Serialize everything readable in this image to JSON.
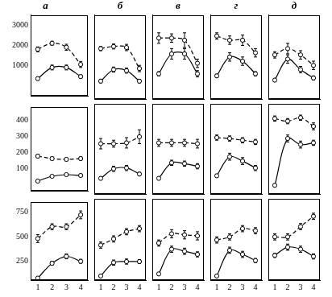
{
  "chart_data": [
    {
      "type": "line",
      "title": "а",
      "x": [
        1,
        2,
        3,
        4
      ],
      "xlim": [
        0.5,
        4.5
      ],
      "xticks": [
        1,
        2,
        3,
        4
      ],
      "ylim": [
        -500,
        3500
      ],
      "yticks": [
        1000,
        2000,
        3000
      ],
      "tick_labels": "y",
      "series": [
        {
          "color": "#000000",
          "line_style": "dashed",
          "marker": "circle",
          "values": [
            1800,
            2100,
            1900,
            1050
          ],
          "errors": [
            120,
            100,
            150,
            150
          ]
        },
        {
          "color": "#000000",
          "line_style": "solid",
          "marker": "circle",
          "values": [
            350,
            900,
            900,
            450
          ],
          "errors": [
            80,
            120,
            120,
            80
          ]
        }
      ]
    },
    {
      "type": "line",
      "title": "б",
      "x": [
        1,
        2,
        3,
        4
      ],
      "xlim": [
        0.5,
        4.5
      ],
      "xticks": [
        1,
        2,
        3,
        4
      ],
      "ylim": [
        -500,
        3500
      ],
      "yticks": [
        1000,
        2000,
        3000
      ],
      "tick_labels": false,
      "series": [
        {
          "color": "#000000",
          "line_style": "dashed",
          "marker": "circle",
          "values": [
            1900,
            2000,
            1950,
            950
          ],
          "errors": [
            100,
            120,
            150,
            150
          ]
        },
        {
          "color": "#000000",
          "line_style": "solid",
          "marker": "circle",
          "values": [
            350,
            900,
            850,
            350
          ],
          "errors": [
            80,
            120,
            120,
            80
          ]
        }
      ]
    },
    {
      "type": "line",
      "title": "в",
      "x": [
        1,
        2,
        3,
        4
      ],
      "xlim": [
        0.5,
        4.5
      ],
      "xticks": [
        1,
        2,
        3,
        4
      ],
      "ylim": [
        -500,
        3500
      ],
      "yticks": [
        1000,
        2000,
        3000
      ],
      "tick_labels": false,
      "series": [
        {
          "color": "#000000",
          "line_style": "dashed",
          "marker": "circle",
          "values": [
            2400,
            2400,
            2300,
            1200
          ],
          "errors": [
            250,
            200,
            350,
            200
          ]
        },
        {
          "color": "#000000",
          "line_style": "solid",
          "marker": "circle",
          "values": [
            700,
            1650,
            1650,
            700
          ],
          "errors": [
            100,
            250,
            250,
            150
          ]
        }
      ]
    },
    {
      "type": "line",
      "title": "г",
      "x": [
        1,
        2,
        3,
        4
      ],
      "xlim": [
        0.5,
        4.5
      ],
      "xticks": [
        1,
        2,
        3,
        4
      ],
      "ylim": [
        -500,
        3500
      ],
      "yticks": [
        1000,
        2000,
        3000
      ],
      "tick_labels": false,
      "series": [
        {
          "color": "#000000",
          "line_style": "dashed",
          "marker": "circle",
          "values": [
            2500,
            2300,
            2300,
            1700
          ],
          "errors": [
            150,
            200,
            250,
            200
          ]
        },
        {
          "color": "#000000",
          "line_style": "solid",
          "marker": "circle",
          "values": [
            600,
            1500,
            1300,
            700
          ],
          "errors": [
            80,
            200,
            200,
            100
          ]
        }
      ]
    },
    {
      "type": "line",
      "title": "д",
      "x": [
        1,
        2,
        3,
        4
      ],
      "xlim": [
        0.5,
        4.5
      ],
      "xticks": [
        1,
        2,
        3,
        4
      ],
      "ylim": [
        -500,
        3500
      ],
      "yticks": [
        1000,
        2000,
        3000
      ],
      "tick_labels": false,
      "series": [
        {
          "color": "#000000",
          "line_style": "dashed",
          "marker": "circle",
          "values": [
            1600,
            1900,
            1600,
            1100
          ],
          "errors": [
            150,
            250,
            200,
            200
          ]
        },
        {
          "color": "#000000",
          "line_style": "solid",
          "marker": "circle",
          "values": [
            400,
            1400,
            900,
            500
          ],
          "errors": [
            80,
            200,
            150,
            100
          ]
        }
      ]
    },
    {
      "type": "line",
      "x": [
        1,
        2,
        3,
        4
      ],
      "xlim": [
        0.5,
        4.5
      ],
      "xticks": [
        1,
        2,
        3,
        4
      ],
      "ylim": [
        -40,
        480
      ],
      "yticks": [
        100,
        200,
        300,
        400
      ],
      "tick_labels": "y",
      "series": [
        {
          "color": "#000000",
          "line_style": "dashed",
          "marker": "circle",
          "values": [
            175,
            160,
            155,
            160
          ],
          "errors": [
            10,
            10,
            10,
            10
          ]
        },
        {
          "color": "#000000",
          "line_style": "solid",
          "marker": "circle",
          "values": [
            20,
            50,
            60,
            55
          ],
          "errors": [
            5,
            8,
            8,
            8
          ]
        }
      ]
    },
    {
      "type": "line",
      "x": [
        1,
        2,
        3,
        4
      ],
      "xlim": [
        0.5,
        4.5
      ],
      "xticks": [
        1,
        2,
        3,
        4
      ],
      "ylim": [
        -40,
        480
      ],
      "yticks": [
        100,
        200,
        300,
        400
      ],
      "tick_labels": false,
      "series": [
        {
          "color": "#000000",
          "line_style": "dashed",
          "marker": "circle",
          "values": [
            250,
            250,
            255,
            290
          ],
          "errors": [
            30,
            20,
            30,
            40
          ]
        },
        {
          "color": "#000000",
          "line_style": "solid",
          "marker": "circle",
          "values": [
            50,
            105,
            110,
            75
          ],
          "errors": [
            8,
            15,
            15,
            10
          ]
        }
      ]
    },
    {
      "type": "line",
      "x": [
        1,
        2,
        3,
        4
      ],
      "xlim": [
        0.5,
        4.5
      ],
      "xticks": [
        1,
        2,
        3,
        4
      ],
      "ylim": [
        -40,
        480
      ],
      "yticks": [
        100,
        200,
        300,
        400
      ],
      "tick_labels": false,
      "series": [
        {
          "color": "#000000",
          "line_style": "dashed",
          "marker": "circle",
          "values": [
            255,
            255,
            255,
            250
          ],
          "errors": [
            20,
            20,
            20,
            25
          ]
        },
        {
          "color": "#000000",
          "line_style": "solid",
          "marker": "circle",
          "values": [
            50,
            140,
            135,
            120
          ],
          "errors": [
            8,
            15,
            15,
            15
          ]
        }
      ]
    },
    {
      "type": "line",
      "x": [
        1,
        2,
        3,
        4
      ],
      "xlim": [
        0.5,
        4.5
      ],
      "xticks": [
        1,
        2,
        3,
        4
      ],
      "ylim": [
        -40,
        480
      ],
      "yticks": [
        100,
        200,
        300,
        400
      ],
      "tick_labels": false,
      "series": [
        {
          "color": "#000000",
          "line_style": "dashed",
          "marker": "circle",
          "values": [
            285,
            280,
            270,
            260
          ],
          "errors": [
            15,
            15,
            15,
            15
          ]
        },
        {
          "color": "#000000",
          "line_style": "solid",
          "marker": "circle",
          "values": [
            65,
            175,
            150,
            110
          ],
          "errors": [
            8,
            20,
            20,
            15
          ]
        }
      ]
    },
    {
      "type": "line",
      "x": [
        1,
        2,
        3,
        4
      ],
      "xlim": [
        0.5,
        4.5
      ],
      "xticks": [
        1,
        2,
        3,
        4
      ],
      "ylim": [
        -40,
        480
      ],
      "yticks": [
        100,
        200,
        300,
        400
      ],
      "tick_labels": false,
      "series": [
        {
          "color": "#000000",
          "line_style": "dashed",
          "marker": "circle",
          "values": [
            395,
            380,
            400,
            350
          ],
          "errors": [
            15,
            15,
            15,
            20
          ]
        },
        {
          "color": "#000000",
          "line_style": "solid",
          "marker": "circle",
          "values": [
            10,
            280,
            245,
            255
          ],
          "errors": [
            5,
            20,
            20,
            15
          ]
        }
      ]
    },
    {
      "type": "line",
      "x": [
        1,
        2,
        3,
        4
      ],
      "xlim": [
        0.5,
        4.5
      ],
      "xticks": [
        1,
        2,
        3,
        4
      ],
      "ylim": [
        60,
        850
      ],
      "yticks": [
        250,
        500,
        750
      ],
      "tick_labels": true,
      "series": [
        {
          "color": "#000000",
          "line_style": "dashed",
          "marker": "circle",
          "values": [
            480,
            600,
            600,
            720
          ],
          "errors": [
            40,
            30,
            30,
            40
          ]
        },
        {
          "color": "#000000",
          "line_style": "solid",
          "marker": "circle",
          "values": [
            80,
            230,
            300,
            250
          ],
          "errors": [
            10,
            20,
            25,
            20
          ]
        }
      ]
    },
    {
      "type": "line",
      "x": [
        1,
        2,
        3,
        4
      ],
      "xlim": [
        0.5,
        4.5
      ],
      "xticks": [
        1,
        2,
        3,
        4
      ],
      "ylim": [
        60,
        850
      ],
      "yticks": [
        250,
        500,
        750
      ],
      "tick_labels": "x",
      "series": [
        {
          "color": "#000000",
          "line_style": "dashed",
          "marker": "circle",
          "values": [
            400,
            460,
            530,
            560
          ],
          "errors": [
            30,
            30,
            30,
            30
          ]
        },
        {
          "color": "#000000",
          "line_style": "solid",
          "marker": "circle",
          "values": [
            100,
            230,
            240,
            240
          ],
          "errors": [
            10,
            25,
            25,
            20
          ]
        }
      ]
    },
    {
      "type": "line",
      "x": [
        1,
        2,
        3,
        4
      ],
      "xlim": [
        0.5,
        4.5
      ],
      "xticks": [
        1,
        2,
        3,
        4
      ],
      "ylim": [
        60,
        850
      ],
      "yticks": [
        250,
        500,
        750
      ],
      "tick_labels": "x",
      "series": [
        {
          "color": "#000000",
          "line_style": "dashed",
          "marker": "circle",
          "values": [
            420,
            510,
            500,
            490
          ],
          "errors": [
            30,
            40,
            40,
            40
          ]
        },
        {
          "color": "#000000",
          "line_style": "solid",
          "marker": "circle",
          "values": [
            120,
            360,
            340,
            310
          ],
          "errors": [
            10,
            30,
            30,
            25
          ]
        }
      ]
    },
    {
      "type": "line",
      "x": [
        1,
        2,
        3,
        4
      ],
      "xlim": [
        0.5,
        4.5
      ],
      "xticks": [
        1,
        2,
        3,
        4
      ],
      "ylim": [
        60,
        850
      ],
      "yticks": [
        250,
        500,
        750
      ],
      "tick_labels": "x",
      "series": [
        {
          "color": "#000000",
          "line_style": "dashed",
          "marker": "circle",
          "values": [
            450,
            480,
            560,
            540
          ],
          "errors": [
            30,
            30,
            30,
            30
          ]
        },
        {
          "color": "#000000",
          "line_style": "solid",
          "marker": "circle",
          "values": [
            100,
            350,
            310,
            250
          ],
          "errors": [
            10,
            30,
            30,
            20
          ]
        }
      ]
    },
    {
      "type": "line",
      "x": [
        1,
        2,
        3,
        4
      ],
      "xlim": [
        0.5,
        4.5
      ],
      "xticks": [
        1,
        2,
        3,
        4
      ],
      "ylim": [
        60,
        850
      ],
      "yticks": [
        250,
        500,
        750
      ],
      "tick_labels": "x",
      "series": [
        {
          "color": "#000000",
          "line_style": "dashed",
          "marker": "circle",
          "values": [
            480,
            480,
            580,
            680
          ],
          "errors": [
            30,
            30,
            30,
            30
          ]
        },
        {
          "color": "#000000",
          "line_style": "solid",
          "marker": "circle",
          "values": [
            300,
            380,
            360,
            290
          ],
          "errors": [
            20,
            30,
            30,
            25
          ]
        }
      ]
    }
  ]
}
